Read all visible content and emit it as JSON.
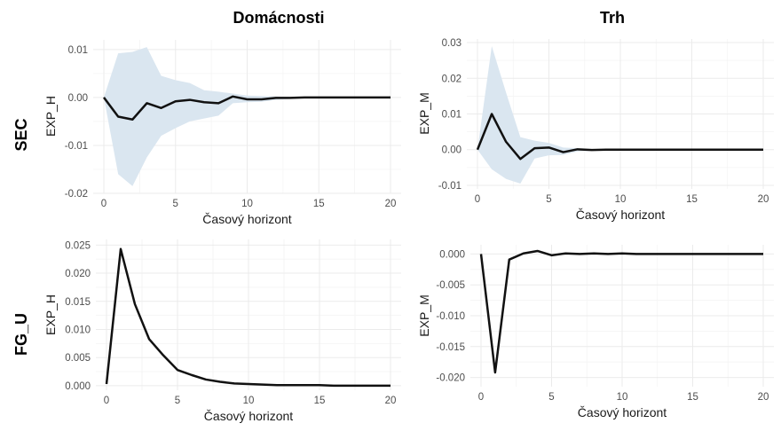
{
  "column_titles": [
    "Domácnosti",
    "Trh"
  ],
  "row_labels": [
    "SEC",
    "FG_U"
  ],
  "colors": {
    "line": "#111111",
    "band": "#dae6f0",
    "grid_major": "#ebebeb",
    "grid_minor": "#f4f4f4"
  },
  "chart_data": [
    {
      "type": "line",
      "panel": "SEC / Domácnosti",
      "xlabel": "Časový horizont",
      "ylabel": "EXP_H",
      "xlim": [
        0,
        20
      ],
      "ylim": [
        -0.02,
        0.012
      ],
      "x_ticks": [
        0,
        5,
        10,
        15,
        20
      ],
      "y_ticks": [
        -0.02,
        -0.01,
        0,
        0.01
      ],
      "y_tick_labels": [
        "-0.02",
        "-0.01",
        "0.00",
        "0.01"
      ],
      "x": [
        0,
        1,
        2,
        3,
        4,
        5,
        6,
        7,
        8,
        9,
        10,
        11,
        12,
        13,
        14,
        15,
        16,
        17,
        18,
        19,
        20
      ],
      "series": [
        {
          "values": [
            0,
            -0.004,
            -0.0046,
            -0.0012,
            -0.0022,
            -0.0008,
            -0.0005,
            -0.001,
            -0.0012,
            0.0002,
            -0.0004,
            -0.0004,
            -0.0001,
            -0.0001,
            0,
            0,
            0,
            0,
            0,
            0,
            0
          ]
        }
      ],
      "band_upper": [
        0,
        0.0092,
        0.0095,
        0.0105,
        0.0045,
        0.0036,
        0.003,
        0.0015,
        0.0012,
        0.0008,
        0.0004,
        0.0003,
        0.0002,
        0.0001,
        0,
        0,
        0,
        0,
        0,
        0,
        0
      ],
      "band_lower": [
        0,
        -0.016,
        -0.0185,
        -0.0125,
        -0.008,
        -0.0064,
        -0.005,
        -0.0044,
        -0.0038,
        -0.0012,
        -0.001,
        -0.0009,
        -0.0005,
        -0.0003,
        -0.0001,
        0,
        0,
        0,
        0,
        0,
        0
      ],
      "grid": true
    },
    {
      "type": "line",
      "panel": "SEC / Trh",
      "xlabel": "Časový horizont",
      "ylabel": "EXP_M",
      "xlim": [
        0,
        20
      ],
      "ylim": [
        -0.011,
        0.031
      ],
      "x_ticks": [
        0,
        5,
        10,
        15,
        20
      ],
      "y_ticks": [
        -0.01,
        0,
        0.01,
        0.02,
        0.03
      ],
      "y_tick_labels": [
        "-0.01",
        "0.00",
        "0.01",
        "0.02",
        "0.03"
      ],
      "x": [
        0,
        1,
        2,
        3,
        4,
        5,
        6,
        7,
        8,
        9,
        10,
        11,
        12,
        13,
        14,
        15,
        16,
        17,
        18,
        19,
        20
      ],
      "series": [
        {
          "values": [
            0,
            0.01,
            0.0022,
            -0.0026,
            0.0004,
            0.0006,
            -0.0007,
            0.0001,
            -0.0001,
            0,
            0,
            0,
            0,
            0,
            0,
            0,
            0,
            0,
            0,
            0,
            0
          ]
        }
      ],
      "band_upper": [
        0,
        0.029,
        0.016,
        0.0035,
        0.0025,
        0.0019,
        0.0006,
        0.0004,
        0.0002,
        0.0001,
        0,
        0,
        0,
        0,
        0,
        0,
        0,
        0,
        0,
        0,
        0
      ],
      "band_lower": [
        0,
        -0.0055,
        -0.0082,
        -0.0095,
        -0.0025,
        -0.0016,
        -0.0015,
        -0.0005,
        -0.0003,
        -0.0001,
        0,
        0,
        0,
        0,
        0,
        0,
        0,
        0,
        0,
        0,
        0
      ],
      "grid": true
    },
    {
      "type": "line",
      "panel": "FG_U / Domácnosti",
      "xlabel": "Časový horizont",
      "ylabel": "EXP_H",
      "xlim": [
        0,
        20
      ],
      "ylim": [
        -0.0008,
        0.026
      ],
      "x_ticks": [
        0,
        5,
        10,
        15,
        20
      ],
      "y_ticks": [
        0,
        0.005,
        0.01,
        0.015,
        0.02,
        0.025
      ],
      "y_tick_labels": [
        "0.000",
        "0.005",
        "0.010",
        "0.015",
        "0.020",
        "0.025"
      ],
      "x": [
        0,
        1,
        2,
        3,
        4,
        5,
        6,
        7,
        8,
        9,
        10,
        11,
        12,
        13,
        14,
        15,
        16,
        17,
        18,
        19,
        20
      ],
      "series": [
        {
          "values": [
            0.0003,
            0.0243,
            0.0145,
            0.0083,
            0.0054,
            0.0028,
            0.0019,
            0.0011,
            0.0007,
            0.0004,
            0.0003,
            0.0002,
            0.0001,
            0.0001,
            0.0001,
            0.0001,
            0,
            0,
            0,
            0,
            0
          ]
        }
      ],
      "grid": true
    },
    {
      "type": "line",
      "panel": "FG_U / Trh",
      "xlabel": "Časový horizont",
      "ylabel": "EXP_M",
      "xlim": [
        0,
        20
      ],
      "ylim": [
        -0.0215,
        0.0015
      ],
      "x_ticks": [
        0,
        5,
        10,
        15,
        20
      ],
      "y_ticks": [
        -0.02,
        -0.015,
        -0.01,
        -0.005,
        0
      ],
      "y_tick_labels": [
        "-0.020",
        "-0.015",
        "-0.010",
        "-0.005",
        "0.000"
      ],
      "x": [
        0,
        1,
        2,
        3,
        4,
        5,
        6,
        7,
        8,
        9,
        10,
        11,
        12,
        13,
        14,
        15,
        16,
        17,
        18,
        19,
        20
      ],
      "series": [
        {
          "values": [
            0,
            -0.0192,
            -0.0009,
            0.0001,
            0.0005,
            -0.0002,
            0.0001,
            0,
            0.0001,
            0,
            0.0001,
            0,
            0,
            0,
            0,
            0,
            0,
            0,
            0,
            0,
            0
          ]
        }
      ],
      "grid": true
    }
  ]
}
